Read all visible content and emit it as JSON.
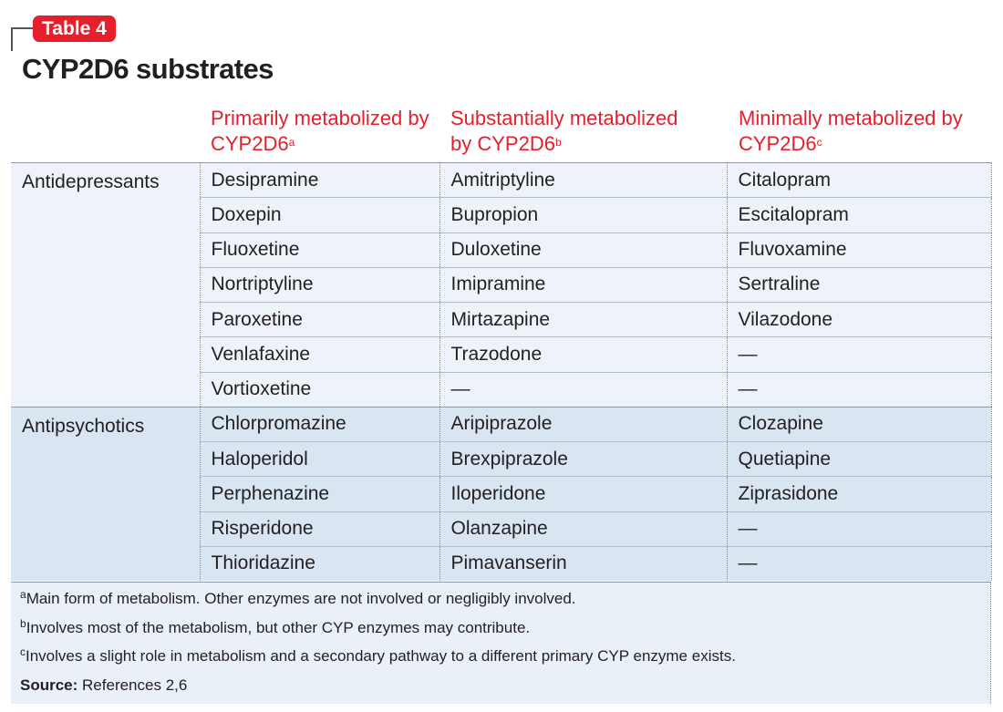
{
  "label": "Table 4",
  "title": "CYP2D6 substrates",
  "columns": [
    {
      "text": "Primarily metabolized by CYP2D6",
      "note": "a"
    },
    {
      "text": "Substantially metabolized by CYP2D6",
      "note": "b"
    },
    {
      "text": "Minimally metabolized by CYP2D6",
      "note": "c"
    }
  ],
  "groups": [
    {
      "name": "Antidepressants",
      "rows": [
        [
          "Desipramine",
          "Amitriptyline",
          "Citalopram"
        ],
        [
          "Doxepin",
          "Bupropion",
          "Escitalopram"
        ],
        [
          "Fluoxetine",
          "Duloxetine",
          "Fluvoxamine"
        ],
        [
          "Nortriptyline",
          "Imipramine",
          "Sertraline"
        ],
        [
          "Paroxetine",
          "Mirtazapine",
          "Vilazodone"
        ],
        [
          "Venlafaxine",
          "Trazodone",
          "—"
        ],
        [
          "Vortioxetine",
          "—",
          "—"
        ]
      ]
    },
    {
      "name": "Antipsychotics",
      "rows": [
        [
          "Chlorpromazine",
          "Aripiprazole",
          "Clozapine"
        ],
        [
          "Haloperidol",
          "Brexpiprazole",
          "Quetiapine"
        ],
        [
          "Perphenazine",
          "Iloperidone",
          "Ziprasidone"
        ],
        [
          "Risperidone",
          "Olanzapine",
          "—"
        ],
        [
          "Thioridazine",
          "Pimavanserin",
          "—"
        ]
      ]
    }
  ],
  "footnotes": [
    {
      "mark": "a",
      "text": "Main form of metabolism. Other enzymes are not involved or negligibly involved."
    },
    {
      "mark": "b",
      "text": "Involves most of the metabolism, but other CYP enzymes may contribute."
    },
    {
      "mark": "c",
      "text": "Involves a slight role in metabolism and a secondary pathway to a different primary CYP enzyme exists."
    }
  ],
  "source": {
    "label": "Source:",
    "text": "References 2,6"
  }
}
